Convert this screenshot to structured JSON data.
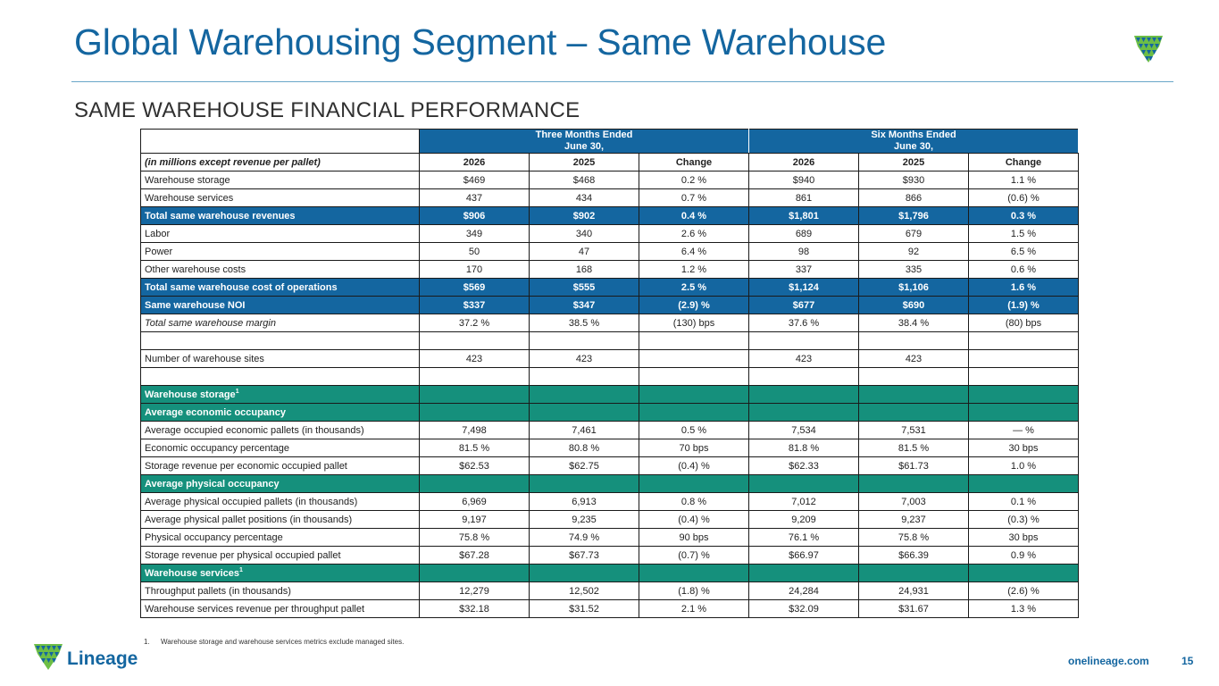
{
  "title": "Global Warehousing Segment – Same Warehouse",
  "subtitle": "SAME WAREHOUSE FINANCIAL PERFORMANCE",
  "table": {
    "group_headers": {
      "three_months": [
        "Three Months Ended",
        "June 30,"
      ],
      "six_months": [
        "Six Months Ended",
        "June 30,"
      ]
    },
    "units_label": "(in millions except revenue per pallet)",
    "columns": [
      "2026",
      "2025",
      "Change",
      "2026",
      "2025",
      "Change"
    ],
    "rows": [
      {
        "label": "Warehouse storage",
        "values": [
          "$469",
          "$468",
          "0.2 %",
          "$940",
          "$930",
          "1.1 %"
        ]
      },
      {
        "label": "Warehouse services",
        "values": [
          "437",
          "434",
          "0.7 %",
          "861",
          "866",
          "(0.6) %"
        ]
      },
      {
        "label": "Total same warehouse revenues",
        "values": [
          "$906",
          "$902",
          "0.4 %",
          "$1,801",
          "$1,796",
          "0.3 %"
        ]
      },
      {
        "label": "Labor",
        "values": [
          "349",
          "340",
          "2.6 %",
          "689",
          "679",
          "1.5 %"
        ]
      },
      {
        "label": "Power",
        "values": [
          "50",
          "47",
          "6.4 %",
          "98",
          "92",
          "6.5 %"
        ]
      },
      {
        "label": "Other warehouse costs",
        "values": [
          "170",
          "168",
          "1.2 %",
          "337",
          "335",
          "0.6 %"
        ]
      },
      {
        "label": "Total same warehouse cost of operations",
        "values": [
          "$569",
          "$555",
          "2.5 %",
          "$1,124",
          "$1,106",
          "1.6 %"
        ]
      },
      {
        "label": "Same warehouse NOI",
        "values": [
          "$337",
          "$347",
          "(2.9) %",
          "$677",
          "$690",
          "(1.9) %"
        ]
      },
      {
        "label": "Total same warehouse margin",
        "values": [
          "37.2 %",
          "38.5 %",
          "(130) bps",
          "37.6 %",
          "38.4 %",
          "(80) bps"
        ]
      },
      {
        "label": "Number of warehouse sites",
        "values": [
          "423",
          "423",
          "",
          "423",
          "423",
          ""
        ]
      },
      {
        "label": "Warehouse storage",
        "sup": "1"
      },
      {
        "label": "Average economic occupancy"
      },
      {
        "label": "Average occupied economic pallets (in thousands)",
        "values": [
          "7,498",
          "7,461",
          "0.5 %",
          "7,534",
          "7,531",
          "— %"
        ]
      },
      {
        "label": "Economic occupancy percentage",
        "values": [
          "81.5 %",
          "80.8 %",
          "70 bps",
          "81.8 %",
          "81.5 %",
          "30 bps"
        ]
      },
      {
        "label": "Storage revenue per economic occupied pallet",
        "values": [
          "$62.53",
          "$62.75",
          "(0.4) %",
          "$62.33",
          "$61.73",
          "1.0 %"
        ]
      },
      {
        "label": "Average physical occupancy"
      },
      {
        "label": "Average physical occupied pallets (in thousands)",
        "values": [
          "6,969",
          "6,913",
          "0.8 %",
          "7,012",
          "7,003",
          "0.1 %"
        ]
      },
      {
        "label": "Average physical pallet positions (in thousands)",
        "values": [
          "9,197",
          "9,235",
          "(0.4) %",
          "9,209",
          "9,237",
          "(0.3) %"
        ]
      },
      {
        "label": "Physical occupancy percentage",
        "values": [
          "75.8 %",
          "74.9 %",
          "90 bps",
          "76.1 %",
          "75.8 %",
          "30 bps"
        ]
      },
      {
        "label": "Storage revenue per physical occupied pallet",
        "values": [
          "$67.28",
          "$67.73",
          "(0.7) %",
          "$66.97",
          "$66.39",
          "0.9 %"
        ]
      },
      {
        "label": "Warehouse services",
        "sup": "1"
      },
      {
        "label": "Throughput pallets (in thousands)",
        "values": [
          "12,279",
          "12,502",
          "(1.8) %",
          "24,284",
          "24,931",
          "(2.6) %"
        ]
      },
      {
        "label": "Warehouse services revenue per throughput pallet",
        "values": [
          "$32.18",
          "$31.52",
          "2.1 %",
          "$32.09",
          "$31.67",
          "1.3 %"
        ]
      }
    ]
  },
  "footnote": {
    "number": "1.",
    "text": "Warehouse storage and warehouse services metrics exclude managed sites."
  },
  "footer": {
    "brand": "Lineage",
    "website": "onelineage.com",
    "page_number": "15"
  },
  "colors": {
    "primary_blue": "#1466a0",
    "section_teal": "#15907c",
    "logo_green": "#6dbe45"
  }
}
